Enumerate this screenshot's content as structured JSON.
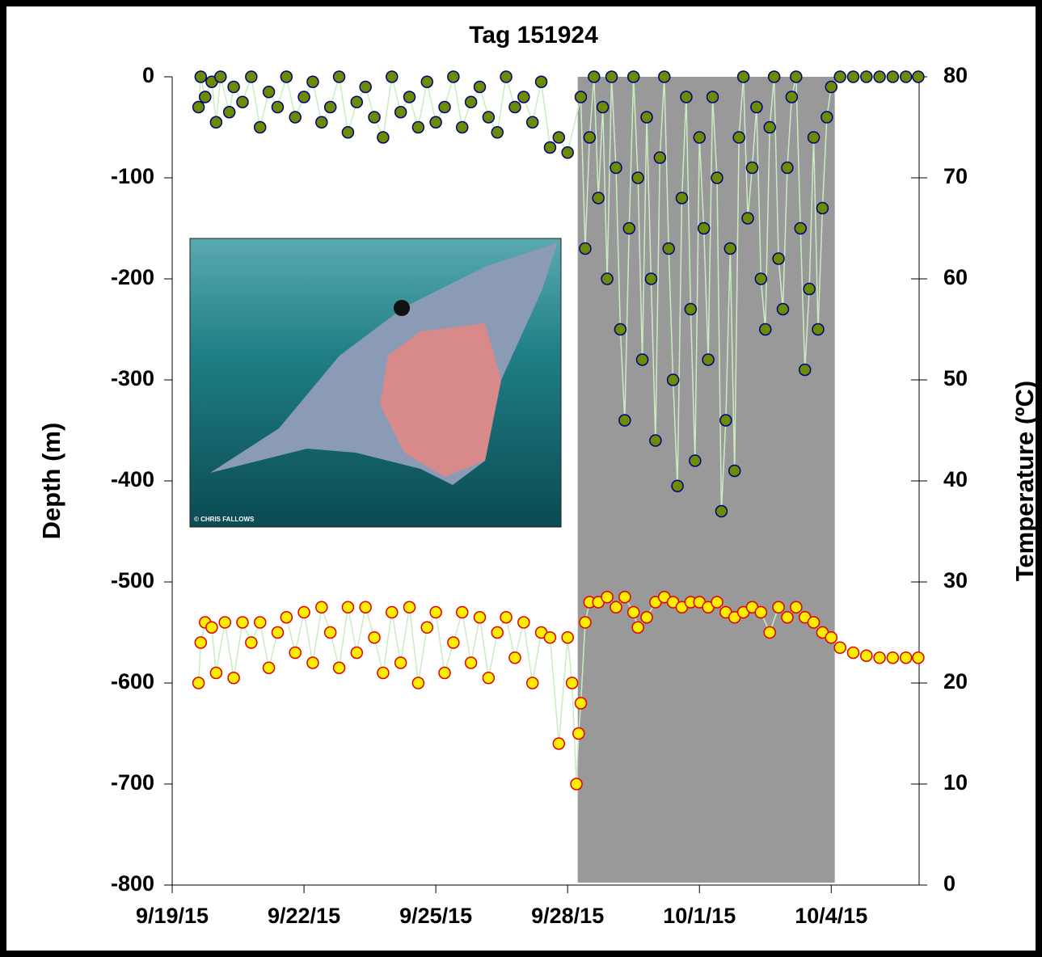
{
  "chart_data": {
    "type": "scatter",
    "title": "Tag 151924",
    "ylabel": "Depth (m)",
    "y2label": "Temperature (ºC)",
    "xlim": [
      0,
      17
    ],
    "xticks": [
      {
        "value": 0,
        "label": "9/19/15"
      },
      {
        "value": 3,
        "label": "9/22/15"
      },
      {
        "value": 6,
        "label": "9/25/15"
      },
      {
        "value": 9,
        "label": "9/28/15"
      },
      {
        "value": 12,
        "label": "10/1/15"
      },
      {
        "value": 15,
        "label": "10/4/15"
      }
    ],
    "ylim": [
      -800,
      0
    ],
    "yticks": [
      0,
      -100,
      -200,
      -300,
      -400,
      -500,
      -600,
      -700,
      -800
    ],
    "y2lim": [
      0,
      80
    ],
    "y2ticks": [
      0,
      10,
      20,
      30,
      40,
      50,
      60,
      70,
      80
    ],
    "shaded_span": [
      9.23,
      15.08
    ],
    "shaded_color": "#999999",
    "connector_color": "#c8ecc0",
    "series": [
      {
        "color": "#6b8c00",
        "edge_color": "#000080",
        "x": [
          0.6,
          0.65,
          0.75,
          0.9,
          1.0,
          1.1,
          1.3,
          1.4,
          1.6,
          1.8,
          2.0,
          2.2,
          2.4,
          2.6,
          2.8,
          3.0,
          3.2,
          3.4,
          3.6,
          3.8,
          4.0,
          4.2,
          4.4,
          4.6,
          4.8,
          5.0,
          5.2,
          5.4,
          5.6,
          5.8,
          6.0,
          6.2,
          6.4,
          6.6,
          6.8,
          7.0,
          7.2,
          7.4,
          7.6,
          7.8,
          8.0,
          8.2,
          8.4,
          8.6,
          8.8,
          9.0,
          9.3,
          9.4,
          9.5,
          9.6,
          9.7,
          9.8,
          9.9,
          10.0,
          10.1,
          10.2,
          10.3,
          10.4,
          10.5,
          10.6,
          10.7,
          10.8,
          10.9,
          11.0,
          11.1,
          11.2,
          11.3,
          11.4,
          11.5,
          11.6,
          11.7,
          11.8,
          11.9,
          12.0,
          12.1,
          12.2,
          12.3,
          12.4,
          12.5,
          12.6,
          12.7,
          12.8,
          12.9,
          13.0,
          13.1,
          13.2,
          13.3,
          13.4,
          13.5,
          13.6,
          13.7,
          13.8,
          13.9,
          14.0,
          14.1,
          14.2,
          14.3,
          14.4,
          14.5,
          14.6,
          14.7,
          14.8,
          14.9,
          15.0,
          15.2,
          15.5,
          15.8,
          16.1,
          16.4,
          16.7,
          16.98
        ],
        "values": [
          -30,
          0,
          -20,
          -5,
          -45,
          0,
          -35,
          -10,
          -25,
          0,
          -50,
          -15,
          -30,
          0,
          -40,
          -20,
          -5,
          -45,
          -30,
          0,
          -55,
          -25,
          -10,
          -40,
          -60,
          0,
          -35,
          -20,
          -50,
          -5,
          -45,
          -30,
          0,
          -50,
          -25,
          -10,
          -40,
          -55,
          0,
          -30,
          -20,
          -45,
          -5,
          -70,
          -60,
          -75,
          -20,
          -170,
          -60,
          0,
          -120,
          -30,
          -200,
          0,
          -90,
          -250,
          -340,
          -150,
          0,
          -100,
          -280,
          -40,
          -200,
          -360,
          -80,
          0,
          -170,
          -300,
          -405,
          -120,
          -20,
          -230,
          -380,
          -60,
          -150,
          -280,
          -20,
          -100,
          -430,
          -340,
          -170,
          -390,
          -60,
          0,
          -140,
          -90,
          -30,
          -200,
          -250,
          -50,
          0,
          -180,
          -230,
          -90,
          -20,
          0,
          -150,
          -290,
          -210,
          -60,
          -250,
          -130,
          -40,
          -10,
          0,
          0,
          0,
          0,
          0,
          0,
          0
        ]
      },
      {
        "color": "#ffee00",
        "edge_color": "#e00000",
        "axis": "y2",
        "x": [
          0.6,
          0.65,
          0.75,
          0.9,
          1.0,
          1.2,
          1.4,
          1.6,
          1.8,
          2.0,
          2.2,
          2.4,
          2.6,
          2.8,
          3.0,
          3.2,
          3.4,
          3.6,
          3.8,
          4.0,
          4.2,
          4.4,
          4.6,
          4.8,
          5.0,
          5.2,
          5.4,
          5.6,
          5.8,
          6.0,
          6.2,
          6.4,
          6.6,
          6.8,
          7.0,
          7.2,
          7.4,
          7.6,
          7.8,
          8.0,
          8.2,
          8.4,
          8.6,
          8.8,
          9.0,
          9.1,
          9.2,
          9.25,
          9.3,
          9.4,
          9.5,
          9.7,
          9.9,
          10.1,
          10.3,
          10.5,
          10.6,
          10.8,
          11.0,
          11.2,
          11.4,
          11.6,
          11.8,
          12.0,
          12.2,
          12.4,
          12.6,
          12.8,
          13.0,
          13.2,
          13.4,
          13.6,
          13.8,
          14.0,
          14.2,
          14.4,
          14.6,
          14.8,
          15.0,
          15.2,
          15.5,
          15.8,
          16.1,
          16.4,
          16.7,
          16.98
        ],
        "values": [
          20,
          24,
          26,
          25.5,
          21,
          26,
          20.5,
          26,
          24,
          26,
          21.5,
          25,
          26.5,
          23,
          27,
          22,
          27.5,
          25,
          21.5,
          27.5,
          23,
          27.5,
          24.5,
          21,
          27,
          22,
          27.5,
          20,
          25.5,
          27,
          21,
          24,
          27,
          22,
          26.5,
          20.5,
          25,
          26.5,
          22.5,
          26,
          20,
          25,
          24.5,
          14,
          24.5,
          20,
          10,
          15,
          18,
          26,
          28,
          28,
          28.5,
          27.5,
          28.5,
          27,
          25.5,
          26.5,
          28,
          28.5,
          28,
          27.5,
          28,
          28,
          27.5,
          28,
          27,
          26.5,
          27,
          27.5,
          27,
          25,
          27.5,
          26.5,
          27.5,
          26.5,
          26,
          25,
          24.5,
          23.5,
          23,
          22.7,
          22.5,
          22.5,
          22.5,
          22.5
        ]
      }
    ],
    "inset": {
      "credit": "© CHRIS FALLOWS"
    }
  }
}
